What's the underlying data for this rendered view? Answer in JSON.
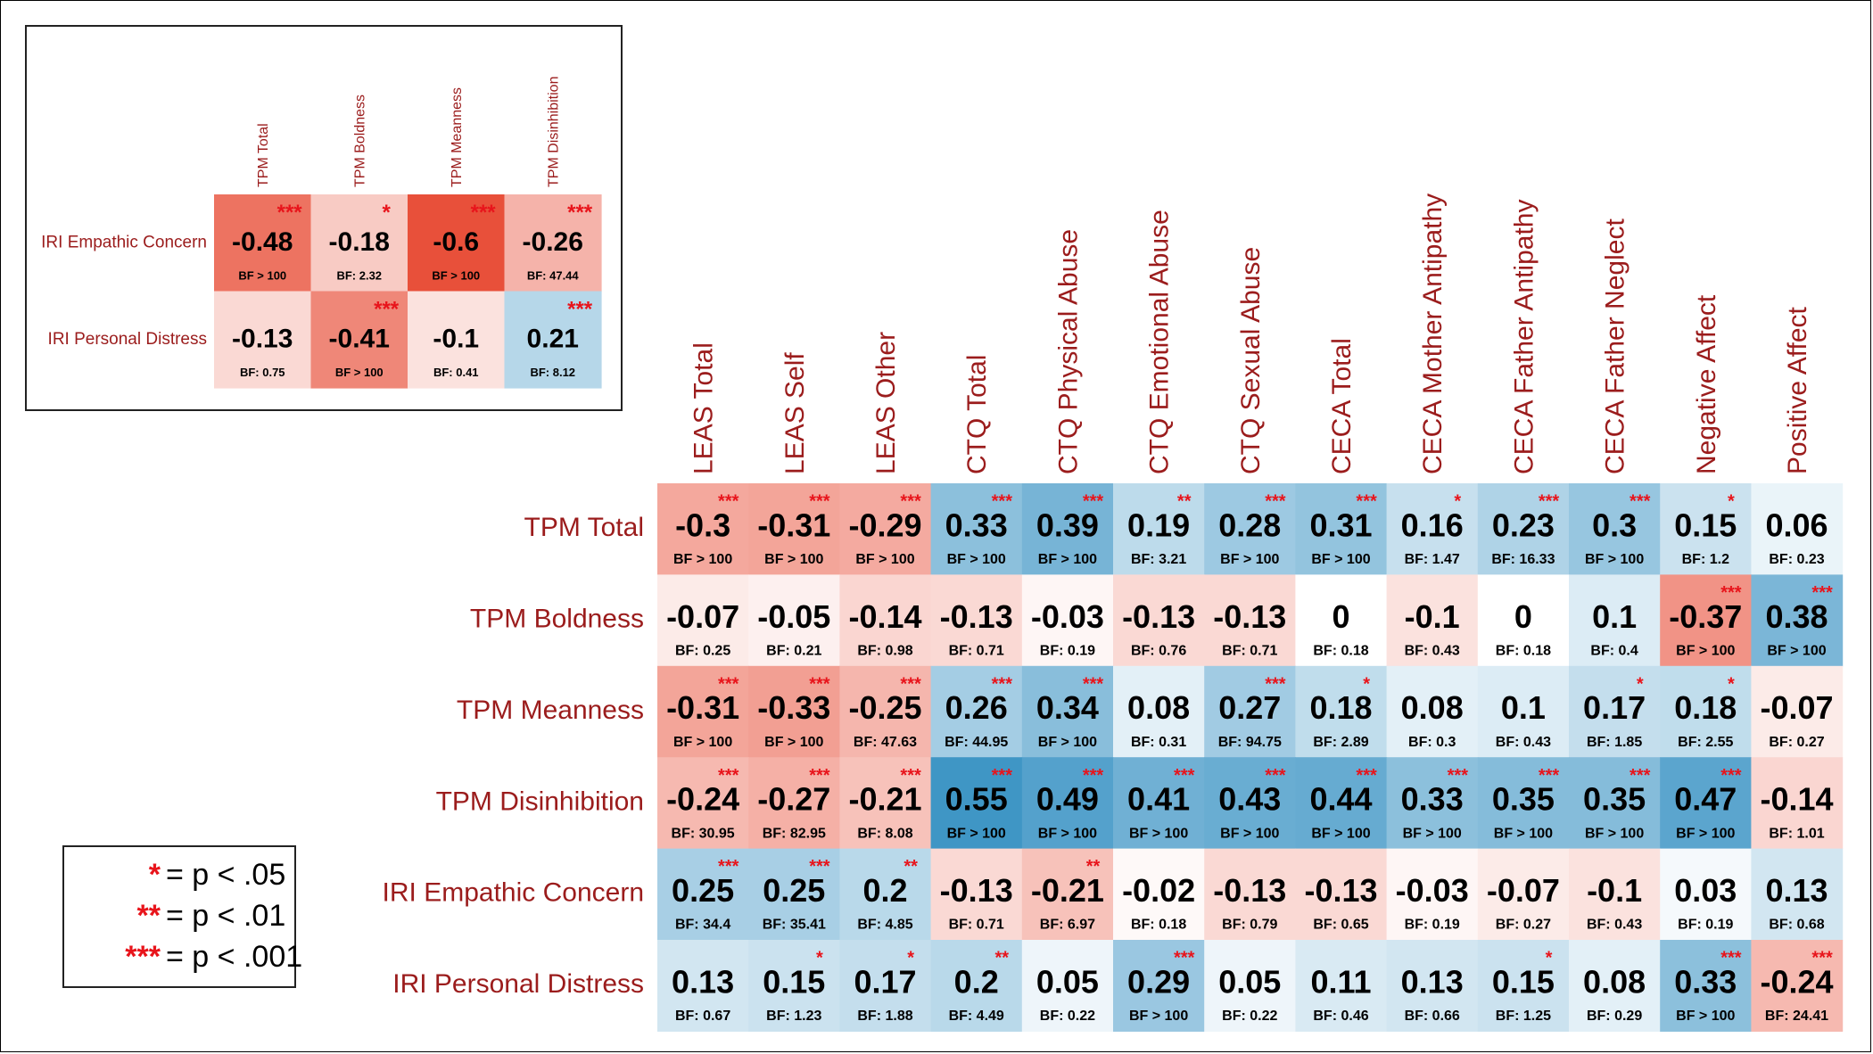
{
  "chart_data": [
    {
      "type": "heatmap",
      "rows": [
        "IRI Empathic Concern",
        "IRI Personal Distress"
      ],
      "columns": [
        "TPM Total",
        "TPM Boldness",
        "TPM Meanness",
        "TPM Disinhibition"
      ],
      "values": [
        [
          -0.48,
          -0.18,
          -0.6,
          -0.26
        ],
        [
          -0.13,
          -0.41,
          -0.1,
          0.21
        ]
      ],
      "bf": [
        [
          "BF > 100",
          "BF: 2.32",
          "BF > 100",
          "BF: 47.44"
        ],
        [
          "BF: 0.75",
          "BF > 100",
          "BF: 0.41",
          "BF: 8.12"
        ]
      ],
      "stars": [
        [
          "***",
          "*",
          "***",
          "***"
        ],
        [
          "",
          "***",
          "",
          "***"
        ]
      ]
    },
    {
      "type": "heatmap",
      "rows": [
        "TPM Total",
        "TPM Boldness",
        "TPM Meanness",
        "TPM Disinhibition",
        "IRI Empathic Concern",
        "IRI Personal Distress"
      ],
      "columns": [
        "LEAS Total",
        "LEAS Self",
        "LEAS Other",
        "CTQ Total",
        "CTQ Physical Abuse",
        "CTQ Emotional Abuse",
        "CTQ Sexual Abuse",
        "CECA Total",
        "CECA Mother Antipathy",
        "CECA Father Antipathy",
        "CECA Father Neglect",
        "Negative Affect",
        "Positive Affect"
      ],
      "values": [
        [
          -0.3,
          -0.31,
          -0.29,
          0.33,
          0.39,
          0.19,
          0.28,
          0.31,
          0.16,
          0.23,
          0.3,
          0.15,
          0.06
        ],
        [
          -0.07,
          -0.05,
          -0.14,
          -0.13,
          -0.03,
          -0.13,
          -0.13,
          0,
          -0.1,
          0,
          0.1,
          -0.37,
          0.38
        ],
        [
          -0.31,
          -0.33,
          -0.25,
          0.26,
          0.34,
          0.08,
          0.27,
          0.18,
          0.08,
          0.1,
          0.17,
          0.18,
          -0.07
        ],
        [
          -0.24,
          -0.27,
          -0.21,
          0.55,
          0.49,
          0.41,
          0.43,
          0.44,
          0.33,
          0.35,
          0.35,
          0.47,
          -0.14
        ],
        [
          0.25,
          0.25,
          0.2,
          -0.13,
          -0.21,
          -0.02,
          -0.13,
          -0.13,
          -0.03,
          -0.07,
          -0.1,
          0.03,
          0.13
        ],
        [
          0.13,
          0.15,
          0.17,
          0.2,
          0.05,
          0.29,
          0.05,
          0.11,
          0.13,
          0.15,
          0.08,
          0.33,
          -0.24
        ]
      ],
      "bf": [
        [
          "BF > 100",
          "BF > 100",
          "BF > 100",
          "BF > 100",
          "BF > 100",
          "BF: 3.21",
          "BF > 100",
          "BF > 100",
          "BF: 1.47",
          "BF: 16.33",
          "BF > 100",
          "BF: 1.2",
          "BF: 0.23"
        ],
        [
          "BF: 0.25",
          "BF: 0.21",
          "BF: 0.98",
          "BF: 0.71",
          "BF: 0.19",
          "BF: 0.76",
          "BF: 0.71",
          "BF: 0.18",
          "BF: 0.43",
          "BF: 0.18",
          "BF: 0.4",
          "BF > 100",
          "BF > 100"
        ],
        [
          "BF > 100",
          "BF > 100",
          "BF: 47.63",
          "BF: 44.95",
          "BF > 100",
          "BF: 0.31",
          "BF: 94.75",
          "BF: 2.89",
          "BF: 0.3",
          "BF: 0.43",
          "BF: 1.85",
          "BF: 2.55",
          "BF: 0.27"
        ],
        [
          "BF: 30.95",
          "BF: 82.95",
          "BF: 8.08",
          "BF > 100",
          "BF > 100",
          "BF > 100",
          "BF > 100",
          "BF > 100",
          "BF > 100",
          "BF > 100",
          "BF > 100",
          "BF > 100",
          "BF: 1.01"
        ],
        [
          "BF: 34.4",
          "BF: 35.41",
          "BF: 4.85",
          "BF: 0.71",
          "BF: 6.97",
          "BF: 0.18",
          "BF: 0.79",
          "BF: 0.65",
          "BF: 0.19",
          "BF: 0.27",
          "BF: 0.43",
          "BF: 0.19",
          "BF: 0.68"
        ],
        [
          "BF: 0.67",
          "BF: 1.23",
          "BF: 1.88",
          "BF: 4.49",
          "BF: 0.22",
          "BF > 100",
          "BF: 0.22",
          "BF: 0.46",
          "BF: 0.66",
          "BF: 1.25",
          "BF: 0.29",
          "BF > 100",
          "BF: 24.41"
        ]
      ],
      "stars": [
        [
          "***",
          "***",
          "***",
          "***",
          "***",
          "**",
          "***",
          "***",
          "*",
          "***",
          "***",
          "*",
          ""
        ],
        [
          "",
          "",
          "",
          "",
          "",
          "",
          "",
          "",
          "",
          "",
          "",
          "***",
          "***"
        ],
        [
          "***",
          "***",
          "***",
          "***",
          "***",
          "",
          "***",
          "*",
          "",
          "",
          "*",
          "*",
          ""
        ],
        [
          "***",
          "***",
          "***",
          "***",
          "***",
          "***",
          "***",
          "***",
          "***",
          "***",
          "***",
          "***",
          ""
        ],
        [
          "***",
          "***",
          "**",
          "",
          "**",
          "",
          "",
          "",
          "",
          "",
          "",
          "",
          ""
        ],
        [
          "",
          "*",
          "*",
          "**",
          "",
          "***",
          "",
          "",
          "",
          "*",
          "",
          "***",
          "***"
        ]
      ]
    }
  ],
  "legend": [
    {
      "stars": "*",
      "text": "= p < .05"
    },
    {
      "stars": "**",
      "text": "= p < .01"
    },
    {
      "stars": "***",
      "text": "= p < .001"
    }
  ],
  "colors": {
    "label": "#9b1c1c",
    "star": "#e8141b",
    "positive": "#2e8cc0",
    "negative": "#e8503a",
    "neutral": "#ffffff"
  }
}
